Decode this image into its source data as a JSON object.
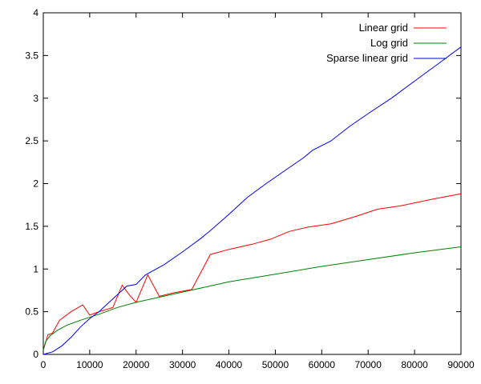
{
  "chart_data": {
    "type": "line",
    "xlim": [
      0,
      90000
    ],
    "ylim": [
      0,
      4
    ],
    "xticks": [
      0,
      10000,
      20000,
      30000,
      40000,
      50000,
      60000,
      70000,
      80000,
      90000
    ],
    "yticks": [
      0,
      0.5,
      1,
      1.5,
      2,
      2.5,
      3,
      3.5,
      4
    ],
    "grid": false,
    "legend_position": "top-right",
    "series": [
      {
        "name": "Linear grid",
        "color": "#ff0000",
        "x": [
          0,
          1000,
          2000,
          3500,
          6000,
          8500,
          10000,
          12000,
          15000,
          17000,
          18500,
          20000,
          22500,
          25000,
          28000,
          32000,
          36000,
          40000,
          45000,
          49000,
          53000,
          57000,
          62000,
          67000,
          72000,
          77000,
          84000,
          90000
        ],
        "y": [
          0.05,
          0.23,
          0.25,
          0.4,
          0.5,
          0.58,
          0.46,
          0.5,
          0.55,
          0.81,
          0.7,
          0.61,
          0.93,
          0.68,
          0.72,
          0.76,
          1.17,
          1.23,
          1.29,
          1.35,
          1.44,
          1.49,
          1.53,
          1.61,
          1.7,
          1.74,
          1.82,
          1.88
        ]
      },
      {
        "name": "Log grid",
        "color": "#008000",
        "x": [
          0,
          500,
          1500,
          3000,
          5000,
          8000,
          12000,
          16000,
          20000,
          25000,
          30000,
          35000,
          40000,
          50000,
          60000,
          70000,
          80000,
          90000
        ],
        "y": [
          0.05,
          0.15,
          0.22,
          0.28,
          0.34,
          0.4,
          0.47,
          0.55,
          0.61,
          0.67,
          0.73,
          0.79,
          0.85,
          0.94,
          1.03,
          1.11,
          1.19,
          1.26
        ]
      },
      {
        "name": "Sparse linear grid",
        "color": "#0000ff",
        "x": [
          0,
          2000,
          4000,
          6000,
          8000,
          10000,
          12000,
          14000,
          16000,
          18000,
          20000,
          22000,
          26000,
          30000,
          34000,
          36000,
          40000,
          44000,
          48000,
          52000,
          56000,
          58000,
          62000,
          66000,
          70000,
          75000,
          80000,
          85000,
          90000
        ],
        "y": [
          0,
          0.03,
          0.1,
          0.2,
          0.32,
          0.42,
          0.5,
          0.6,
          0.7,
          0.8,
          0.82,
          0.93,
          1.05,
          1.2,
          1.36,
          1.45,
          1.64,
          1.84,
          2.0,
          2.15,
          2.3,
          2.39,
          2.5,
          2.67,
          2.82,
          3.0,
          3.2,
          3.4,
          3.6
        ]
      }
    ]
  }
}
